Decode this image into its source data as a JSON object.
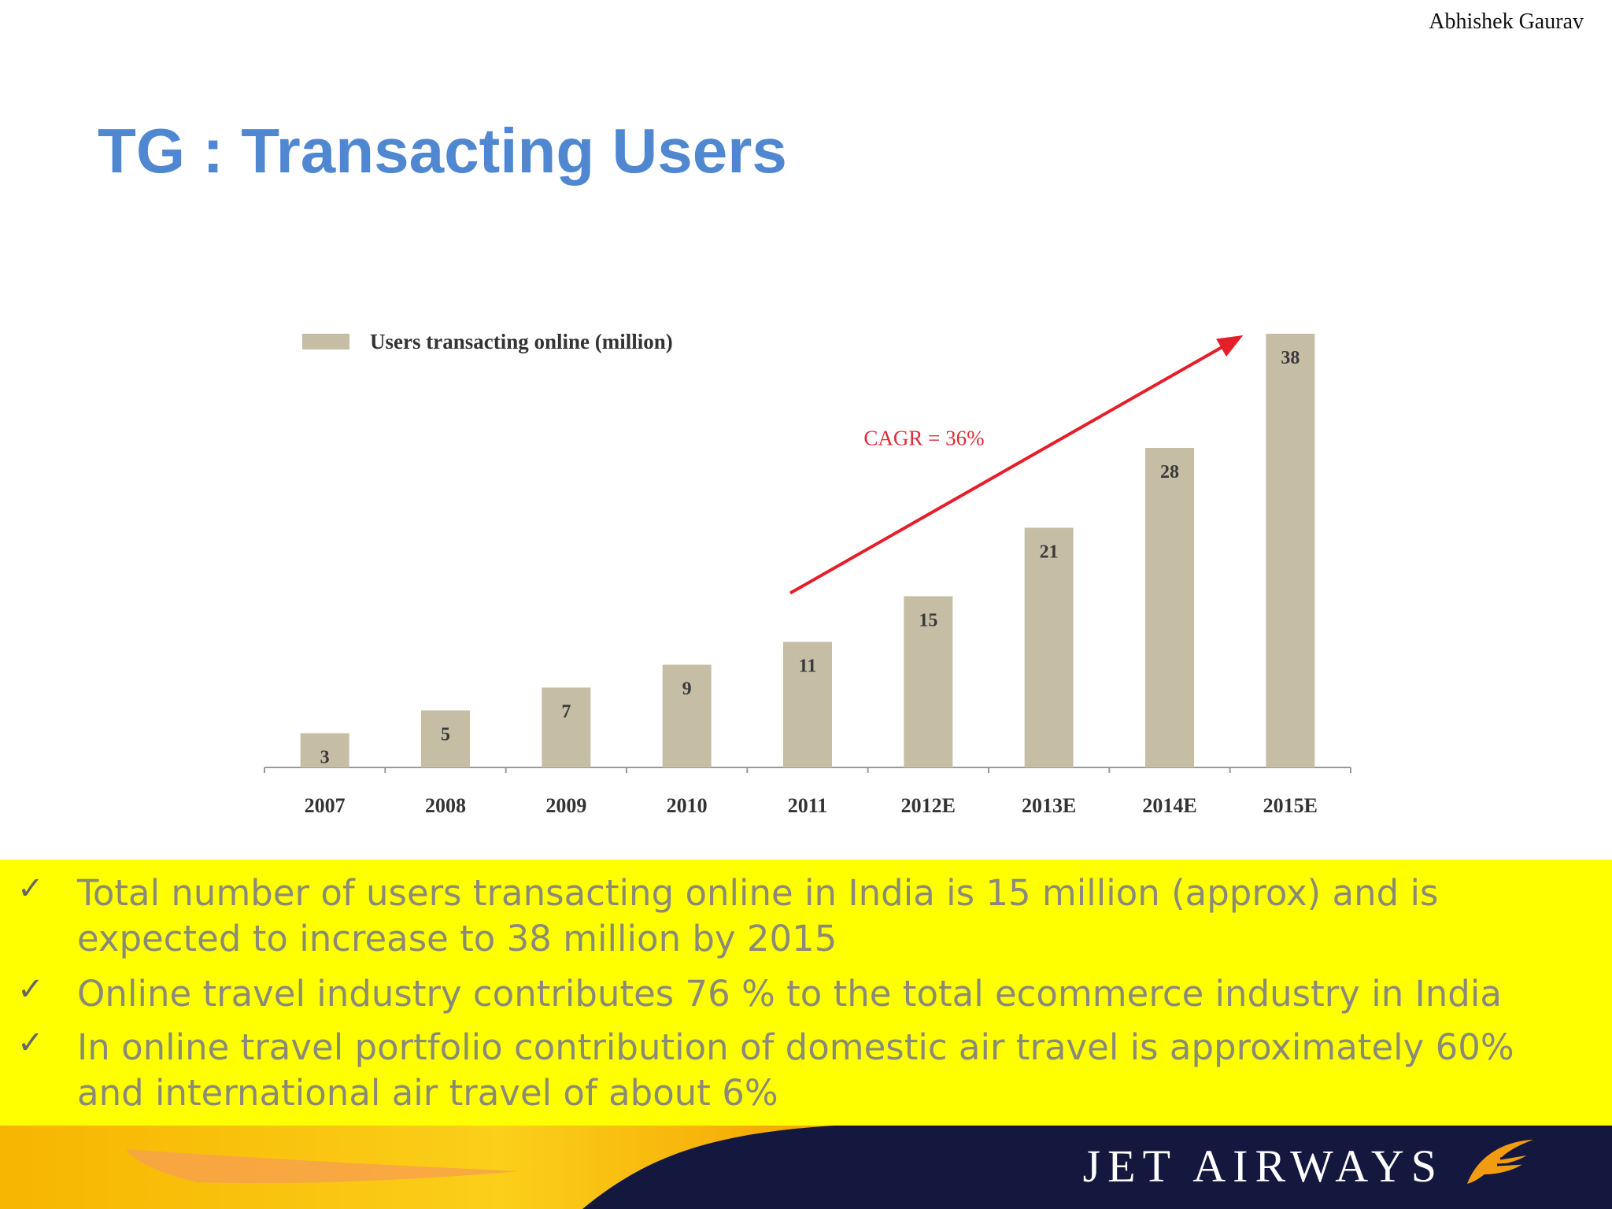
{
  "author": "Abhishek Gaurav",
  "title": "TG : Transacting Users",
  "chart_data": {
    "type": "bar",
    "categories": [
      "2007",
      "2008",
      "2009",
      "2010",
      "2011",
      "2012E",
      "2013E",
      "2014E",
      "2015E"
    ],
    "series": [
      {
        "name": "Users transacting online (million)",
        "values": [
          3,
          5,
          7,
          9,
          11,
          15,
          21,
          28,
          38
        ]
      }
    ],
    "ylim": [
      0,
      38
    ],
    "legend": "top-left",
    "annotation": "CAGR = 36%",
    "grid": false,
    "colors": {
      "bar": "#c5bea5",
      "annotation": "#e02a36",
      "arrow": "#e51e2a"
    }
  },
  "bullets": [
    {
      "text": "Total number of users transacting online in India is 15 million (approx) and is\nexpected to increase to 38 million by 2015"
    },
    {
      "text": "Online travel industry contributes 76 % to the total  ecommerce industry in India"
    },
    {
      "text": "In online travel portfolio contribution of domestic air travel is approximately 60%\nand international air travel of about 6%"
    }
  ],
  "bullet_icon": "checkmark-icon",
  "check_symbol": "✓",
  "footer": {
    "brand": "JET AIRWAYS",
    "logo_icon": "jet-airways-logo-icon"
  },
  "colors": {
    "title": "#4f87d1",
    "highlight": "#ffff00",
    "footer_dark": "#14183f",
    "footer_orange": "#f7b500"
  }
}
